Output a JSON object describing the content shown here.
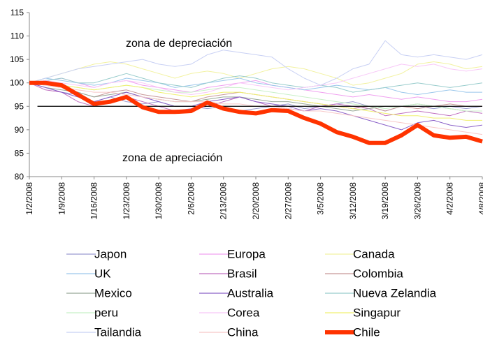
{
  "chart_data": {
    "type": "line",
    "categories": [
      "1/2/2008",
      null,
      "1/9/2008",
      null,
      "1/16/2008",
      null,
      "1/23/2008",
      null,
      "1/30/2008",
      null,
      "2/6/2008",
      null,
      "2/13/2008",
      null,
      "2/20/2008",
      null,
      "2/27/2008",
      null,
      "3/5/2008",
      null,
      "3/12/2008",
      null,
      "3/19/2008",
      null,
      "3/26/2008",
      null,
      "4/2/2008",
      null,
      "4/8/2008"
    ],
    "ylim": [
      80,
      115
    ],
    "yticks": [
      80,
      85,
      90,
      95,
      100,
      105,
      110,
      115
    ],
    "reference_line": 95,
    "annotations": [
      "zona de depreciación",
      "zona de apreciación"
    ],
    "series": [
      {
        "name": "Japon",
        "color": "#9a9ad0",
        "values": [
          100,
          99,
          98,
          97.5,
          96,
          97,
          96,
          95.5,
          96,
          95,
          95,
          94.5,
          95,
          94,
          94.5,
          95,
          95.5,
          94.5,
          95,
          95.5,
          96,
          95,
          94,
          95,
          95,
          94.5,
          95,
          94.5,
          95
        ]
      },
      {
        "name": "Europa",
        "color": "#f0a0f0",
        "values": [
          100,
          100.5,
          101,
          100,
          99,
          100,
          100.5,
          99.5,
          99,
          98.5,
          98,
          99,
          99.5,
          100,
          100.5,
          99.5,
          99,
          98.5,
          98,
          97.5,
          97,
          97.5,
          97,
          96.5,
          97,
          96.5,
          96,
          96,
          96.5
        ]
      },
      {
        "name": "Canada",
        "color": "#f2f2a0",
        "values": [
          100,
          101,
          102,
          103,
          104,
          104.5,
          104,
          103,
          102,
          101,
          102,
          102.5,
          102,
          101,
          102,
          103,
          103.5,
          103,
          102,
          101,
          99.5,
          100,
          101,
          102,
          104,
          104.5,
          104,
          103,
          103.5
        ]
      },
      {
        "name": "UK",
        "color": "#9cc8ec",
        "values": [
          100,
          101,
          100.5,
          100,
          99.5,
          100,
          101,
          100.5,
          100,
          99,
          99.5,
          100,
          100.5,
          101,
          100,
          99.5,
          99,
          98.5,
          99,
          99.5,
          99,
          98.5,
          99,
          98,
          97.5,
          98,
          98.5,
          98,
          98
        ]
      },
      {
        "name": "Brasil",
        "color": "#c070c0",
        "values": [
          100,
          98.5,
          98,
          96,
          95,
          96,
          97,
          96,
          95,
          94,
          94.5,
          95,
          96,
          97,
          96,
          95,
          94.5,
          94,
          95,
          95.5,
          95,
          94.5,
          93,
          93.5,
          94,
          93.5,
          93,
          94,
          93.5
        ]
      },
      {
        "name": "Colombia",
        "color": "#c89898",
        "values": [
          100,
          99.5,
          99,
          98,
          97,
          98,
          98.5,
          97.5,
          97,
          96.5,
          96,
          97,
          97.5,
          98,
          97.5,
          97,
          96.5,
          96,
          95.5,
          95,
          94.5,
          95,
          94,
          95,
          94.5,
          95,
          95.5,
          95,
          95
        ]
      },
      {
        "name": "Mexico",
        "color": "#98a898",
        "values": [
          100,
          99,
          98.5,
          98,
          97,
          97.5,
          98,
          97,
          96.5,
          96,
          96,
          96.5,
          97,
          97,
          96.5,
          96,
          96,
          95.5,
          95,
          94.5,
          94,
          94.5,
          95,
          95,
          95.5,
          95,
          94.5,
          94,
          94
        ]
      },
      {
        "name": "Australia",
        "color": "#8a60c8",
        "values": [
          100,
          99,
          98,
          97,
          96,
          97,
          98,
          97,
          96,
          95,
          95,
          96,
          96.5,
          97,
          96,
          95.5,
          95,
          94,
          94.5,
          94,
          93,
          92,
          91,
          90,
          91.5,
          92,
          91,
          90.5,
          91
        ]
      },
      {
        "name": "Nueva Zelandia",
        "color": "#98cccc",
        "values": [
          100,
          100.5,
          101,
          100,
          100,
          101,
          102,
          101,
          100,
          99.5,
          99,
          100,
          101,
          101.5,
          101,
          100,
          99.5,
          99,
          99.5,
          99,
          98,
          98.5,
          99,
          99.5,
          100,
          99.5,
          99,
          99.5,
          100
        ]
      },
      {
        "name": "peru",
        "color": "#c8f0c8",
        "values": [
          100,
          100,
          99.5,
          99,
          98.5,
          99,
          99.5,
          99,
          98.5,
          98,
          98,
          98.5,
          99,
          99,
          98.5,
          98,
          97.5,
          97,
          96.5,
          96,
          95.5,
          95,
          94.5,
          95,
          95.5,
          95,
          94.5,
          94,
          94
        ]
      },
      {
        "name": "Corea",
        "color": "#f8c8f8",
        "values": [
          100,
          100.5,
          100,
          99.5,
          99,
          100,
          100.5,
          100,
          99,
          98,
          97.5,
          98,
          99,
          100,
          99.5,
          99,
          98.5,
          99,
          99.5,
          100,
          101,
          102,
          103,
          104,
          103.5,
          104,
          103,
          102.5,
          103
        ]
      },
      {
        "name": "Singapur",
        "color": "#f0f070",
        "values": [
          100,
          100,
          99.5,
          99,
          98.5,
          99,
          99.5,
          99,
          98,
          97.5,
          97,
          97.5,
          98,
          98,
          97.5,
          97,
          96.5,
          96,
          95.5,
          95,
          94.5,
          94,
          93.5,
          93,
          93,
          92.5,
          92.5,
          92,
          92
        ]
      },
      {
        "name": "Tailandia",
        "color": "#c8d0f4",
        "values": [
          100,
          101,
          102,
          103,
          103.5,
          104,
          104.5,
          105,
          104,
          103.5,
          104,
          106,
          107,
          106.5,
          106,
          105.5,
          103,
          101,
          99.5,
          101,
          103,
          104,
          109,
          106,
          105.5,
          106,
          105.5,
          105,
          106
        ]
      },
      {
        "name": "China",
        "color": "#f8c8c8",
        "values": [
          100,
          99.5,
          99,
          98.5,
          98,
          98,
          97.5,
          97,
          96.5,
          96,
          96,
          96,
          95.5,
          95.5,
          95,
          95,
          94.5,
          94,
          94,
          93.5,
          93,
          92.5,
          92,
          91.5,
          91,
          90.5,
          90,
          89.5,
          89
        ]
      },
      {
        "name": "Chile",
        "color": "#ff3300",
        "values": [
          100,
          100,
          99.5,
          97.5,
          95.5,
          96,
          97,
          94.8,
          93.8,
          93.8,
          94,
          95.8,
          94.5,
          93.8,
          93.5,
          94.2,
          94,
          92.5,
          91.3,
          89.5,
          88.5,
          87.2,
          87.2,
          88.8,
          91,
          88.8,
          88.3,
          88.5,
          87.5
        ]
      }
    ]
  }
}
